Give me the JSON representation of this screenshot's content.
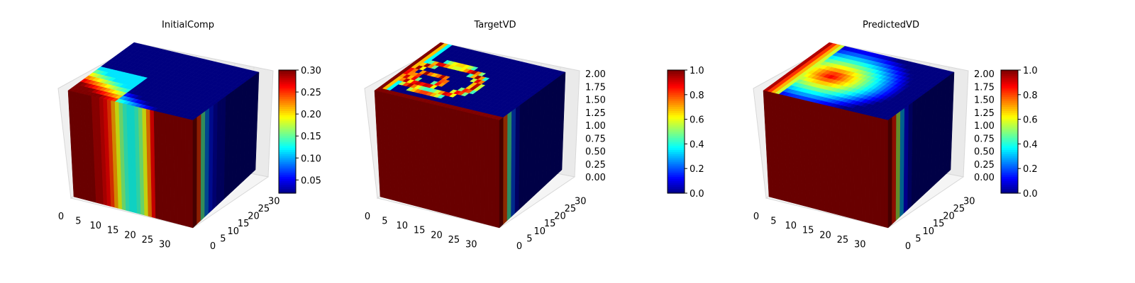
{
  "chart_data": [
    {
      "type": "3d-voxel",
      "title": "InitialComp",
      "colormap": "jet",
      "x_ticks": [
        "0",
        "5",
        "10",
        "15",
        "20",
        "25",
        "30"
      ],
      "y_ticks": [
        "0",
        "5",
        "10",
        "15",
        "20",
        "25",
        "30"
      ],
      "z_ticks": [],
      "xlim": [
        0,
        32
      ],
      "ylim": [
        0,
        32
      ],
      "colorbar": {
        "ticks": [
          "0.05",
          "0.10",
          "0.15",
          "0.20",
          "0.25",
          "0.30"
        ],
        "vmin": 0.02,
        "vmax": 0.3
      },
      "front_face_profile": [
        0.3,
        0.3,
        0.3,
        0.3,
        0.3,
        0.3,
        0.29,
        0.29,
        0.28,
        0.27,
        0.25,
        0.22,
        0.19,
        0.16,
        0.14,
        0.13,
        0.13,
        0.14,
        0.16,
        0.19,
        0.23,
        0.27,
        0.3,
        0.3,
        0.3,
        0.3,
        0.3,
        0.3,
        0.3,
        0.3,
        0.3,
        0.3
      ],
      "side_face_profile": [
        0.3,
        0.25,
        0.15,
        0.09,
        0.06,
        0.04,
        0.03,
        0.03,
        0.02,
        0.02,
        0.02,
        0.02,
        0.02,
        0.02,
        0.02,
        0.02
      ]
    },
    {
      "type": "3d-voxel",
      "title": "TargetVD",
      "colormap": "jet",
      "x_ticks": [
        "0",
        "5",
        "10",
        "15",
        "20",
        "25",
        "30"
      ],
      "y_ticks": [
        "0",
        "5",
        "10",
        "15",
        "20",
        "25",
        "30"
      ],
      "z_ticks": [
        "0.00",
        "0.25",
        "0.50",
        "0.75",
        "1.00",
        "1.25",
        "1.50",
        "1.75",
        "2.00"
      ],
      "xlim": [
        0,
        32
      ],
      "ylim": [
        0,
        32
      ],
      "zlim": [
        0,
        2
      ],
      "colorbar": {
        "ticks": [
          "0.0",
          "0.2",
          "0.4",
          "0.6",
          "0.8",
          "1.0"
        ],
        "vmin": 0,
        "vmax": 1
      },
      "front_face_profile": [
        1,
        1,
        1,
        1,
        1,
        1,
        1,
        1,
        1,
        1,
        1,
        1,
        1,
        1,
        1,
        1,
        1,
        1,
        1,
        1,
        1,
        1,
        1,
        1,
        1,
        1,
        1,
        1,
        1,
        1,
        1,
        1
      ],
      "side_face_profile": [
        1.0,
        0.8,
        0.45,
        0.2,
        0.05,
        0.0,
        0.0,
        0.0,
        0.0,
        0.0,
        0.0,
        0.0,
        0.0,
        0.0,
        0.0,
        0.0
      ]
    },
    {
      "type": "3d-voxel",
      "title": "PredictedVD",
      "colormap": "jet",
      "x_ticks": [
        "0",
        "5",
        "10",
        "15",
        "20",
        "25",
        "30"
      ],
      "y_ticks": [
        "0",
        "5",
        "10",
        "15",
        "20",
        "25",
        "30"
      ],
      "z_ticks": [
        "0.00",
        "0.25",
        "0.50",
        "0.75",
        "1.00",
        "1.25",
        "1.50",
        "1.75",
        "2.00"
      ],
      "xlim": [
        0,
        32
      ],
      "ylim": [
        0,
        32
      ],
      "zlim": [
        0,
        2
      ],
      "colorbar": {
        "ticks": [
          "0.0",
          "0.2",
          "0.4",
          "0.6",
          "0.8",
          "1.0"
        ],
        "vmin": 0,
        "vmax": 1
      },
      "front_face_profile": [
        1,
        1,
        1,
        1,
        1,
        1,
        1,
        1,
        1,
        1,
        1,
        1,
        1,
        1,
        1,
        1,
        1,
        1,
        1,
        1,
        1,
        1,
        1,
        1,
        1,
        1,
        1,
        1,
        1,
        1,
        1,
        1
      ],
      "side_face_profile": [
        1.0,
        0.85,
        0.55,
        0.3,
        0.12,
        0.04,
        0.0,
        0.0,
        0.0,
        0.0,
        0.0,
        0.0,
        0.0,
        0.0,
        0.0,
        0.0
      ]
    }
  ]
}
